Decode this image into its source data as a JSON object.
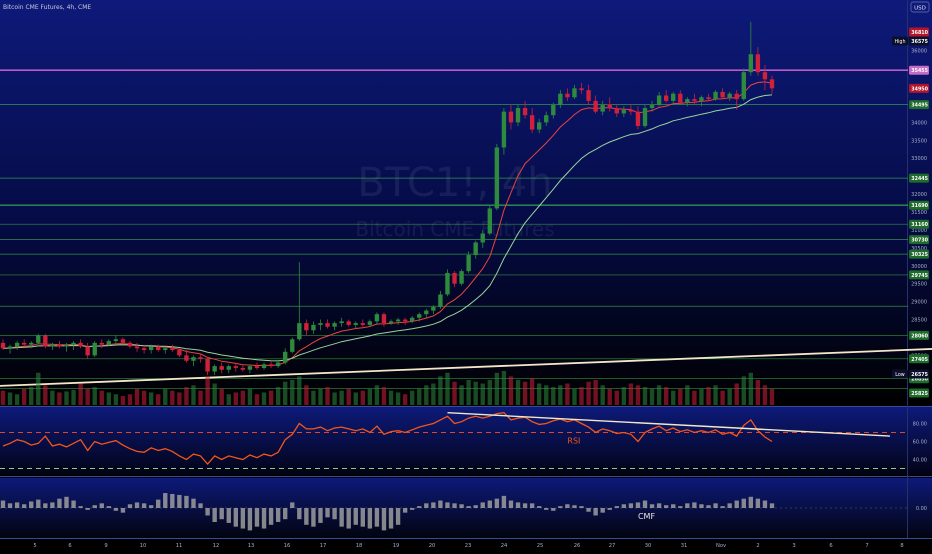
{
  "header": {
    "title": "Bitcoin CME Futures, 4h, CME",
    "currency": "USD"
  },
  "watermark": {
    "symbol": "BTC1!, 4h",
    "name": "Bitcoin CME Futures"
  },
  "colors": {
    "up": "#2e8b3e",
    "down": "#d0213a",
    "ema_fast": "#e8453c",
    "ema_slow": "#9ad49a",
    "h_support": "#3fbf4f",
    "h_resistance": "#d966d9",
    "trend": "#f2e8c8",
    "rsi": "#f2561d",
    "cmf": "#9e9e9e"
  },
  "chart_data": [
    {
      "type": "candlestick",
      "title": "Bitcoin CME Futures, 4h, CME",
      "x_ticks": [
        "5",
        "6",
        "9",
        "10",
        "11",
        "12",
        "13",
        "16",
        "17",
        "18",
        "19",
        "20",
        "23",
        "24",
        "25",
        "26",
        "27",
        "30",
        "31",
        "Nov",
        "2",
        "3",
        "6",
        "7",
        "8"
      ],
      "y_ticks": [
        27000,
        27500,
        28000,
        28500,
        29000,
        29500,
        30000,
        30500,
        31000,
        31500,
        32000,
        32500,
        33000,
        33500,
        34000,
        34500,
        35000,
        35500,
        36000
      ],
      "ylim": [
        26200,
        36800
      ],
      "price_labels": [
        {
          "text": "High",
          "value": "36575",
          "kind": "high"
        },
        {
          "text": "",
          "value": "36810",
          "kind": "down"
        },
        {
          "text": "",
          "value": "35455",
          "kind": "resistance"
        },
        {
          "text": "",
          "value": "34950",
          "kind": "down"
        },
        {
          "text": "",
          "value": "34495",
          "kind": "support"
        },
        {
          "text": "",
          "value": "32445",
          "kind": "support"
        },
        {
          "text": "",
          "value": "31690",
          "kind": "support"
        },
        {
          "text": "",
          "value": "31160",
          "kind": "support"
        },
        {
          "text": "",
          "value": "30730",
          "kind": "support"
        },
        {
          "text": "",
          "value": "30325",
          "kind": "support"
        },
        {
          "text": "",
          "value": "29745",
          "kind": "support"
        },
        {
          "text": "",
          "value": "28060",
          "kind": "support"
        },
        {
          "text": "",
          "value": "27405",
          "kind": "support"
        },
        {
          "text": "",
          "value": "26850",
          "kind": "support"
        },
        {
          "text": "Low",
          "value": "26575",
          "kind": "low"
        },
        {
          "text": "",
          "value": "25825",
          "kind": "support"
        }
      ],
      "horizontal_levels": [
        35455,
        34495,
        32445,
        31690,
        31160,
        30730,
        30325,
        29745,
        28870,
        28060,
        27405,
        26850,
        26575
      ],
      "resistance_level": 35455,
      "trendline": {
        "start": [
          0,
          26650
        ],
        "end": [
          932,
          27680
        ]
      },
      "ohlc": [
        [
          27850,
          27950,
          27650,
          27700
        ],
        [
          27700,
          27800,
          27550,
          27750
        ],
        [
          27750,
          27900,
          27650,
          27850
        ],
        [
          27850,
          27950,
          27750,
          27800
        ],
        [
          27800,
          27900,
          27700,
          27850
        ],
        [
          27850,
          28100,
          27800,
          28050
        ],
        [
          28050,
          28100,
          27700,
          27750
        ],
        [
          27750,
          27850,
          27650,
          27800
        ],
        [
          27800,
          27900,
          27700,
          27750
        ],
        [
          27750,
          27850,
          27600,
          27800
        ],
        [
          27800,
          27900,
          27650,
          27850
        ],
        [
          27850,
          27950,
          27700,
          27750
        ],
        [
          27750,
          27850,
          27400,
          27500
        ],
        [
          27500,
          27900,
          27450,
          27850
        ],
        [
          27850,
          27950,
          27700,
          27800
        ],
        [
          27800,
          27950,
          27750,
          27900
        ],
        [
          27900,
          28050,
          27850,
          27950
        ],
        [
          27950,
          28000,
          27800,
          27850
        ],
        [
          27850,
          27900,
          27700,
          27750
        ],
        [
          27750,
          27850,
          27600,
          27700
        ],
        [
          27700,
          27800,
          27550,
          27650
        ],
        [
          27650,
          27800,
          27550,
          27750
        ],
        [
          27750,
          27800,
          27600,
          27650
        ],
        [
          27650,
          27750,
          27550,
          27700
        ],
        [
          27700,
          27800,
          27600,
          27650
        ],
        [
          27650,
          27700,
          27450,
          27500
        ],
        [
          27500,
          27650,
          27300,
          27350
        ],
        [
          27350,
          27500,
          27200,
          27450
        ],
        [
          27450,
          27550,
          27300,
          27400
        ],
        [
          27400,
          27450,
          26950,
          27050
        ],
        [
          27050,
          27250,
          26950,
          27200
        ],
        [
          27200,
          27300,
          27000,
          27100
        ],
        [
          27100,
          27250,
          27000,
          27200
        ],
        [
          27200,
          27300,
          27050,
          27150
        ],
        [
          27150,
          27250,
          27050,
          27100
        ],
        [
          27100,
          27250,
          27000,
          27200
        ],
        [
          27200,
          27300,
          27100,
          27150
        ],
        [
          27150,
          27300,
          27100,
          27250
        ],
        [
          27250,
          27350,
          27150,
          27200
        ],
        [
          27200,
          27350,
          27150,
          27300
        ],
        [
          27300,
          27700,
          27250,
          27600
        ],
        [
          27600,
          28000,
          27550,
          27950
        ],
        [
          27950,
          30100,
          27900,
          28400
        ],
        [
          28400,
          28500,
          28050,
          28200
        ],
        [
          28200,
          28450,
          28100,
          28350
        ],
        [
          28350,
          28500,
          28200,
          28400
        ],
        [
          28400,
          28500,
          28250,
          28300
        ],
        [
          28300,
          28450,
          28200,
          28400
        ],
        [
          28400,
          28550,
          28300,
          28450
        ],
        [
          28450,
          28500,
          28300,
          28350
        ],
        [
          28350,
          28450,
          28250,
          28400
        ],
        [
          28400,
          28500,
          28300,
          28350
        ],
        [
          28350,
          28500,
          28300,
          28450
        ],
        [
          28450,
          28700,
          28350,
          28650
        ],
        [
          28650,
          28700,
          28300,
          28400
        ],
        [
          28400,
          28500,
          28350,
          28450
        ],
        [
          28450,
          28550,
          28350,
          28500
        ],
        [
          28500,
          28550,
          28350,
          28450
        ],
        [
          28450,
          28600,
          28400,
          28550
        ],
        [
          28550,
          28700,
          28450,
          28650
        ],
        [
          28650,
          28800,
          28550,
          28750
        ],
        [
          28750,
          28900,
          28650,
          28850
        ],
        [
          28850,
          29300,
          28800,
          29200
        ],
        [
          29200,
          29900,
          29150,
          29800
        ],
        [
          29800,
          29850,
          29400,
          29500
        ],
        [
          29500,
          29900,
          29450,
          29850
        ],
        [
          29850,
          30400,
          29800,
          30300
        ],
        [
          30300,
          30700,
          30200,
          30650
        ],
        [
          30650,
          31000,
          30500,
          30900
        ],
        [
          30900,
          31700,
          30850,
          31600
        ],
        [
          31600,
          33400,
          31550,
          33300
        ],
        [
          33300,
          34400,
          33100,
          34300
        ],
        [
          34300,
          34500,
          33800,
          34000
        ],
        [
          34000,
          34500,
          33900,
          34400
        ],
        [
          34400,
          34600,
          34100,
          34200
        ],
        [
          34200,
          34400,
          33700,
          33800
        ],
        [
          33800,
          34100,
          33700,
          34000
        ],
        [
          34000,
          34300,
          33900,
          34200
        ],
        [
          34200,
          34550,
          34100,
          34500
        ],
        [
          34500,
          34900,
          34400,
          34800
        ],
        [
          34800,
          34950,
          34600,
          34700
        ],
        [
          34700,
          35050,
          34650,
          34950
        ],
        [
          34950,
          35100,
          34800,
          34900
        ],
        [
          34900,
          35050,
          34500,
          34600
        ],
        [
          34600,
          34750,
          34250,
          34300
        ],
        [
          34300,
          34600,
          34200,
          34500
        ],
        [
          34500,
          34700,
          34300,
          34400
        ],
        [
          34400,
          34500,
          34150,
          34250
        ],
        [
          34250,
          34450,
          34150,
          34350
        ],
        [
          34350,
          34500,
          34200,
          34300
        ],
        [
          34300,
          34450,
          33800,
          33900
        ],
        [
          33900,
          34500,
          33850,
          34400
        ],
        [
          34400,
          34600,
          34300,
          34500
        ],
        [
          34500,
          34850,
          34450,
          34750
        ],
        [
          34750,
          34900,
          34550,
          34600
        ],
        [
          34600,
          34850,
          34500,
          34800
        ],
        [
          34800,
          34900,
          34500,
          34550
        ],
        [
          34550,
          34700,
          34450,
          34650
        ],
        [
          34650,
          34800,
          34500,
          34600
        ],
        [
          34600,
          34750,
          34450,
          34700
        ],
        [
          34700,
          34800,
          34600,
          34650
        ],
        [
          34650,
          34900,
          34600,
          34850
        ],
        [
          34850,
          34950,
          34650,
          34700
        ],
        [
          34700,
          34850,
          34600,
          34800
        ],
        [
          34800,
          34900,
          34350,
          34650
        ],
        [
          34650,
          35500,
          34600,
          35400
        ],
        [
          35400,
          36810,
          35300,
          35900
        ],
        [
          35900,
          36100,
          35300,
          35400
        ],
        [
          35400,
          35600,
          34900,
          35200
        ],
        [
          35200,
          35300,
          34800,
          34950
        ]
      ],
      "volume": [
        40,
        35,
        30,
        45,
        50,
        90,
        55,
        40,
        35,
        38,
        42,
        60,
        45,
        50,
        40,
        35,
        30,
        25,
        30,
        45,
        40,
        35,
        30,
        45,
        40,
        35,
        50,
        55,
        40,
        80,
        60,
        45,
        30,
        35,
        40,
        45,
        30,
        35,
        40,
        50,
        65,
        70,
        80,
        55,
        40,
        45,
        50,
        35,
        40,
        45,
        35,
        40,
        45,
        55,
        50,
        40,
        35,
        30,
        40,
        45,
        55,
        60,
        80,
        90,
        65,
        55,
        70,
        65,
        60,
        70,
        90,
        95,
        80,
        70,
        65,
        75,
        60,
        55,
        50,
        55,
        60,
        45,
        50,
        65,
        70,
        55,
        45,
        40,
        50,
        60,
        55,
        50,
        45,
        55,
        50,
        40,
        45,
        55,
        40,
        45,
        50,
        55,
        40,
        45,
        60,
        80,
        90,
        70,
        55,
        45
      ],
      "rsi": {
        "label": "RSI",
        "y_ticks": [
          40.0,
          60.0,
          80.0
        ],
        "upper": 70,
        "lower": 30,
        "ylim": [
          25,
          95
        ],
        "values": [
          55,
          58,
          62,
          60,
          56,
          58,
          66,
          55,
          57,
          54,
          58,
          62,
          50,
          60,
          57,
          59,
          61,
          56,
          52,
          49,
          48,
          53,
          50,
          52,
          49,
          44,
          40,
          46,
          44,
          35,
          44,
          40,
          44,
          42,
          40,
          45,
          42,
          46,
          44,
          48,
          62,
          68,
          80,
          74,
          74,
          76,
          72,
          75,
          76,
          74,
          72,
          74,
          70,
          77,
          68,
          71,
          72,
          70,
          73,
          76,
          78,
          80,
          84,
          88,
          80,
          82,
          86,
          88,
          86,
          88,
          91,
          92,
          84,
          86,
          87,
          82,
          79,
          80,
          83,
          85,
          82,
          84,
          80,
          76,
          70,
          74,
          72,
          69,
          70,
          68,
          60,
          70,
          74,
          77,
          72,
          75,
          71,
          73,
          70,
          72,
          70,
          73,
          68,
          70,
          66,
          78,
          84,
          72,
          65,
          60
        ]
      },
      "cmf": {
        "label": "CMF",
        "y_ticks": [
          0.0
        ],
        "ylim": [
          -0.3,
          0.3
        ],
        "values": [
          0.08,
          0.05,
          0.06,
          0.04,
          0.07,
          0.09,
          0.05,
          0.06,
          0.1,
          0.12,
          0.08,
          0.02,
          -0.02,
          0.03,
          0.05,
          0.02,
          -0.03,
          -0.05,
          0.04,
          0.06,
          0.05,
          0.03,
          0.09,
          0.16,
          0.15,
          0.14,
          0.13,
          0.1,
          0.05,
          -0.08,
          -0.15,
          -0.12,
          -0.16,
          -0.2,
          -0.22,
          -0.24,
          -0.2,
          -0.22,
          -0.18,
          -0.15,
          -0.12,
          0.06,
          -0.12,
          -0.18,
          -0.2,
          -0.16,
          -0.1,
          -0.12,
          -0.2,
          -0.22,
          -0.18,
          -0.2,
          -0.22,
          -0.2,
          -0.24,
          -0.22,
          -0.18,
          -0.05,
          -0.02,
          0.02,
          0.05,
          0.06,
          0.08,
          0.06,
          0.05,
          0.04,
          0.02,
          0.03,
          0.06,
          0.08,
          0.1,
          0.13,
          0.08,
          0.06,
          0.05,
          0.05,
          0.02,
          -0.02,
          -0.03,
          0.02,
          0.04,
          0.03,
          0.02,
          -0.04,
          -0.08,
          -0.05,
          -0.02,
          0.02,
          0.04,
          0.05,
          0.06,
          0.08,
          0.04,
          0.05,
          0.03,
          0.04,
          0.02,
          0.05,
          0.06,
          0.04,
          0.03,
          0.05,
          0.02,
          0.05,
          0.08,
          0.1,
          0.12,
          0.1,
          0.08,
          0.05
        ]
      }
    }
  ]
}
